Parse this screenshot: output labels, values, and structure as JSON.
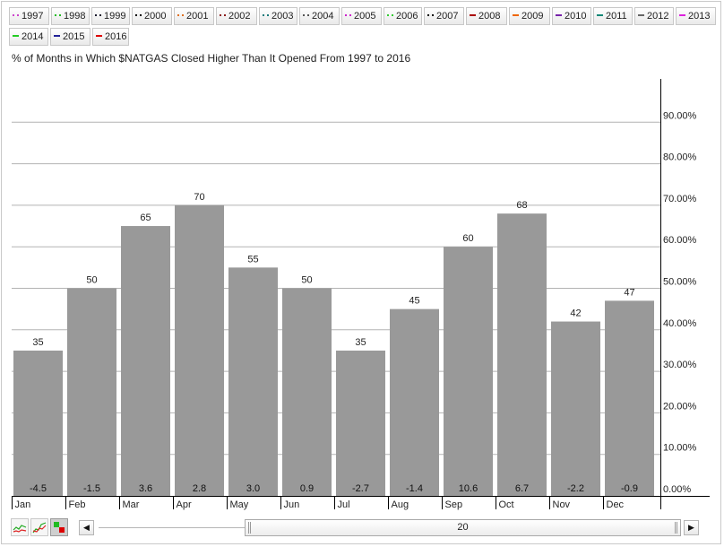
{
  "legend": [
    {
      "label": "1997",
      "color": "#cc44cc",
      "style": "dotted"
    },
    {
      "label": "1998",
      "color": "#22bb22",
      "style": "dotted"
    },
    {
      "label": "1999",
      "color": "#1a1a2e",
      "style": "dotted"
    },
    {
      "label": "2000",
      "color": "#000000",
      "style": "dotted"
    },
    {
      "label": "2001",
      "color": "#e07020",
      "style": "dotted"
    },
    {
      "label": "2002",
      "color": "#8b1a1a",
      "style": "dotted"
    },
    {
      "label": "2003",
      "color": "#1a7a7a",
      "style": "dotted"
    },
    {
      "label": "2004",
      "color": "#555555",
      "style": "dotted"
    },
    {
      "label": "2005",
      "color": "#cc22cc",
      "style": "dotted"
    },
    {
      "label": "2006",
      "color": "#33cc33",
      "style": "dotted"
    },
    {
      "label": "2007",
      "color": "#000000",
      "style": "dotted"
    },
    {
      "label": "2008",
      "color": "#aa0000",
      "style": "solid"
    },
    {
      "label": "2009",
      "color": "#ee6600",
      "style": "solid"
    },
    {
      "label": "2010",
      "color": "#7722aa",
      "style": "solid"
    },
    {
      "label": "2011",
      "color": "#118877",
      "style": "solid"
    },
    {
      "label": "2012",
      "color": "#666666",
      "style": "solid"
    },
    {
      "label": "2013",
      "color": "#dd22dd",
      "style": "solid"
    },
    {
      "label": "2014",
      "color": "#22cc22",
      "style": "solid"
    },
    {
      "label": "2015",
      "color": "#222299",
      "style": "solid"
    },
    {
      "label": "2016",
      "color": "#dd0000",
      "style": "solid"
    }
  ],
  "chart_data": {
    "type": "bar",
    "title": "% of Months in Which $NATGAS Closed Higher Than It Opened From 1997 to 2016",
    "categories": [
      "Jan",
      "Feb",
      "Mar",
      "Apr",
      "May",
      "Jun",
      "Jul",
      "Aug",
      "Sep",
      "Oct",
      "Nov",
      "Dec"
    ],
    "series": [
      {
        "values": [
          35,
          50,
          65,
          70,
          55,
          50,
          35,
          45,
          60,
          68,
          42,
          47
        ]
      }
    ],
    "average_change_labels": [
      "-4.5",
      "-1.5",
      "3.6",
      "2.8",
      "3.0",
      "0.9",
      "-2.7",
      "-1.4",
      "10.6",
      "6.7",
      "-2.2",
      "-0.9"
    ],
    "y_ticks": [
      "0.00%",
      "10.00%",
      "20.00%",
      "30.00%",
      "40.00%",
      "50.00%",
      "60.00%",
      "70.00%",
      "80.00%",
      "90.00%"
    ],
    "ylim": [
      0,
      100
    ],
    "y_axis_position": "right",
    "grid": true,
    "legend_position": "top",
    "bar_color": "#999999",
    "gridline_color": "#b3b3b3"
  },
  "toolbar": {
    "tools": [
      "line-chart-icon",
      "performance-chart-icon",
      "seasonality-bar-icon"
    ],
    "prev_symbol": "◀",
    "next_symbol": "▶",
    "range_value": "20"
  }
}
